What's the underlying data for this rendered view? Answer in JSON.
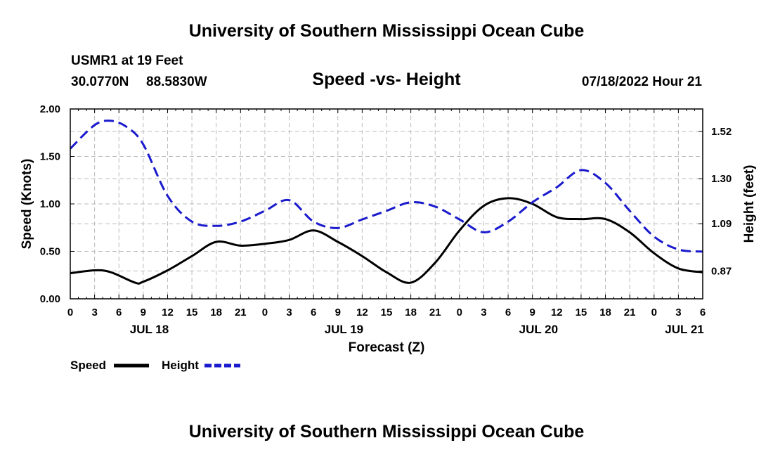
{
  "page": {
    "title": "University of Southern Mississippi Ocean Cube",
    "footer_title": "University of Southern Mississippi Ocean Cube",
    "station": "USMR1 at 19 Feet",
    "lat": "30.0770N",
    "lon": "88.5830W",
    "subtitle": "Speed -vs- Height",
    "datetime": "07/18/2022 Hour 21"
  },
  "chart_data": {
    "type": "line",
    "title": "Speed -vs- Height",
    "xlabel": "Forecast (Z)",
    "ylabel": "Speed (Knots)",
    "y2label": "Height (feet)",
    "x_range_hours": [
      0,
      78
    ],
    "x_tick_step_hours": 3,
    "x_tick_labels": [
      "0",
      "3",
      "6",
      "9",
      "12",
      "15",
      "18",
      "21",
      "0",
      "3",
      "6",
      "9",
      "12",
      "15",
      "18",
      "21",
      "0",
      "3",
      "6",
      "9",
      "12",
      "15",
      "18",
      "21",
      "0",
      "3",
      "6"
    ],
    "date_labels": [
      {
        "hour": 9.75,
        "label": "JUL 18"
      },
      {
        "hour": 33.75,
        "label": "JUL 19"
      },
      {
        "hour": 57.75,
        "label": "JUL 20"
      },
      {
        "hour": 75.75,
        "label": "JUL 21"
      }
    ],
    "ylim": [
      0,
      2
    ],
    "y_ticks": [
      0,
      0.5,
      1,
      1.5,
      2
    ],
    "y_tick_labels": [
      "0.00",
      "0.50",
      "1.00",
      "1.50",
      "2.00"
    ],
    "y2lim": [
      0.74,
      1.625
    ],
    "y2_ticks": [
      0.87,
      1.09,
      1.3,
      1.52
    ],
    "y2_tick_labels": [
      "0.87",
      "1.09",
      "1.30",
      "1.52"
    ],
    "grid": true,
    "legend": [
      {
        "name": "Speed",
        "color": "#000000",
        "dash": "solid"
      },
      {
        "name": "Height",
        "color": "#1a1acd",
        "dash": "dashed"
      }
    ],
    "series": [
      {
        "name": "Speed",
        "axis": "left",
        "color": "#000000",
        "dash": "solid",
        "x": [
          0,
          3,
          5,
          8,
          9,
          12,
          15,
          18,
          21,
          24,
          27,
          30,
          33,
          36,
          39,
          42,
          45,
          48,
          51,
          54,
          57,
          60,
          63,
          66,
          69,
          72,
          75,
          78
        ],
        "y": [
          0.27,
          0.3,
          0.28,
          0.17,
          0.18,
          0.3,
          0.45,
          0.6,
          0.56,
          0.58,
          0.62,
          0.72,
          0.6,
          0.45,
          0.28,
          0.17,
          0.38,
          0.72,
          0.98,
          1.06,
          1.0,
          0.86,
          0.84,
          0.84,
          0.7,
          0.48,
          0.32,
          0.28
        ]
      },
      {
        "name": "Height",
        "axis": "right",
        "color": "#1a1acd",
        "dash": "dashed",
        "x": [
          0,
          3,
          5,
          7,
          9,
          12,
          15,
          18,
          21,
          24,
          27,
          30,
          33,
          36,
          39,
          42,
          45,
          48,
          51,
          54,
          57,
          60,
          63,
          66,
          69,
          72,
          75,
          78
        ],
        "y": [
          1.44,
          1.55,
          1.57,
          1.54,
          1.46,
          1.22,
          1.1,
          1.08,
          1.1,
          1.15,
          1.2,
          1.1,
          1.07,
          1.11,
          1.15,
          1.19,
          1.17,
          1.11,
          1.05,
          1.1,
          1.19,
          1.26,
          1.34,
          1.28,
          1.15,
          1.03,
          0.97,
          0.96
        ]
      }
    ]
  }
}
